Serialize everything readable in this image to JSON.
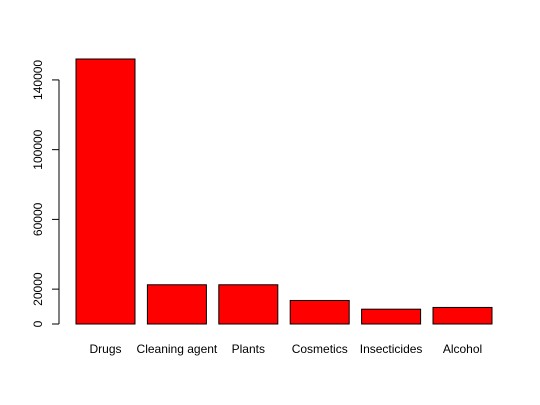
{
  "chart_data": {
    "type": "bar",
    "title": "",
    "xlabel": "",
    "ylabel": "",
    "categories": [
      "Drugs",
      "Cleaning agent",
      "Plants",
      "Cosmetics",
      "Insecticides",
      "Alcohol"
    ],
    "values": [
      152000,
      22500,
      22500,
      13500,
      8500,
      9500
    ],
    "ylim": [
      0,
      152000
    ],
    "yticks": [
      0,
      20000,
      60000,
      100000,
      140000
    ],
    "ytick_labels": [
      "0",
      "20000",
      "60000",
      "100000",
      "140000"
    ],
    "grid": false,
    "legend": "none",
    "bar_color": "#ff0000",
    "bar_border_color": "#000000"
  }
}
